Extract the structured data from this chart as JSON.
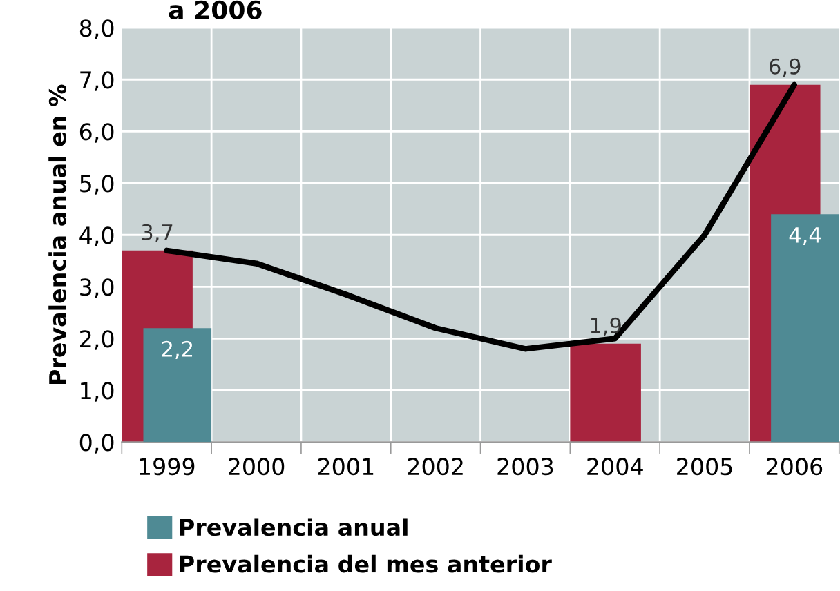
{
  "chart_data": {
    "type": "bar",
    "title": "a 2006",
    "ylabel": "Prevalencia anual en %",
    "categories": [
      "1999",
      "2000",
      "2001",
      "2002",
      "2003",
      "2004",
      "2005",
      "2006"
    ],
    "series": [
      {
        "name": "Prevalencia del mes anterior",
        "color": "#a8243e",
        "values": [
          3.7,
          null,
          null,
          null,
          null,
          1.9,
          null,
          6.9
        ],
        "value_labels": [
          "3,7",
          null,
          null,
          null,
          null,
          "1,9",
          null,
          "6,9"
        ]
      },
      {
        "name": "Prevalencia anual",
        "color": "#4f8a94",
        "values": [
          2.2,
          null,
          null,
          null,
          null,
          null,
          null,
          4.4
        ],
        "value_labels": [
          "2,2",
          null,
          null,
          null,
          null,
          null,
          null,
          "4,4"
        ]
      },
      {
        "type": "line",
        "color": "#000000",
        "values": [
          3.7,
          3.45,
          2.85,
          2.2,
          1.8,
          2.0,
          4.0,
          6.9
        ]
      }
    ],
    "ylim": [
      0,
      8
    ],
    "yticks": [
      {
        "value": 0,
        "label": "0,0"
      },
      {
        "value": 1,
        "label": "1,0"
      },
      {
        "value": 2,
        "label": "2,0"
      },
      {
        "value": 3,
        "label": "3,0"
      },
      {
        "value": 4,
        "label": "4,0"
      },
      {
        "value": 5,
        "label": "5,0"
      },
      {
        "value": 6,
        "label": "6,0"
      },
      {
        "value": 7,
        "label": "7,0"
      },
      {
        "value": 8,
        "label": "8,0"
      }
    ],
    "grid": true,
    "legend": "bottom left"
  }
}
